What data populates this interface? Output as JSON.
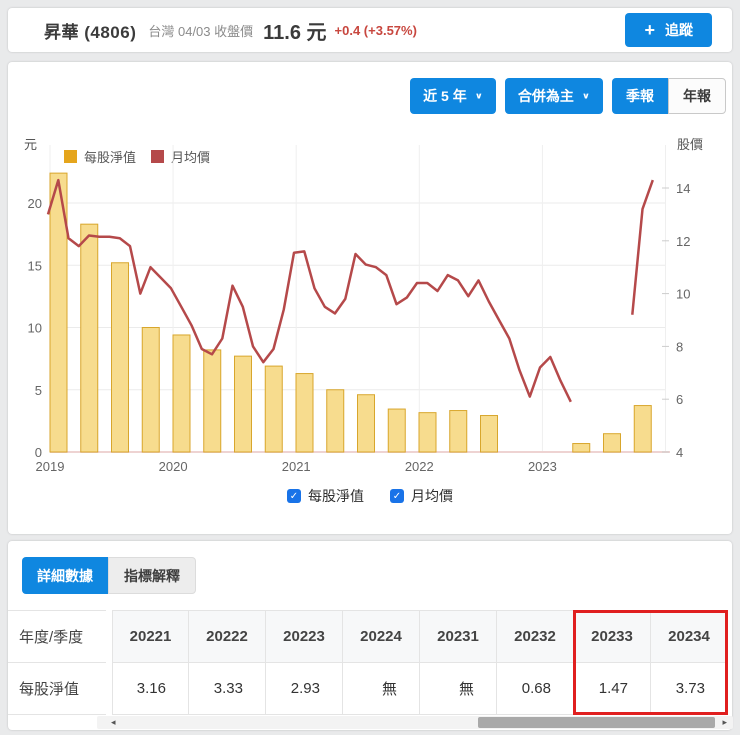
{
  "header": {
    "stock_name": "昇華 (4806)",
    "price_context": "台灣 04/03 收盤價",
    "price": "11.6 元",
    "change": "+0.4 (+3.57%)",
    "follow_label": "追蹤"
  },
  "controls": {
    "range_dropdown": "近 5 年",
    "basis_dropdown": "合併為主",
    "period_quarter": "季報",
    "period_year": "年報",
    "active_period": "季報"
  },
  "colors": {
    "accent_blue": "#0f87e0",
    "bar_fill": "#f7dc8e",
    "bar_border": "#d8a62c",
    "legend_gold": "#e5a51c",
    "line_red": "#b5494a",
    "change_red": "#c8473f",
    "highlight_red": "#e01f1f"
  },
  "chart_data": {
    "type": "bar+line",
    "left_axis": {
      "label": "元",
      "ticks": [
        0,
        5,
        10,
        15,
        20
      ],
      "range": [
        0,
        24.7
      ]
    },
    "right_axis": {
      "label": "股價",
      "ticks": [
        4,
        6,
        8,
        10,
        12,
        14
      ],
      "range": [
        4,
        15.6
      ]
    },
    "x_years": [
      "2019",
      "2020",
      "2021",
      "2022",
      "2023"
    ],
    "legend": [
      "每股淨值",
      "月均價"
    ],
    "series": [
      {
        "name": "每股淨值",
        "type": "bar",
        "axis": "left",
        "quarters": [
          "2019Q1",
          "2019Q2",
          "2019Q3",
          "2019Q4",
          "2020Q1",
          "2020Q2",
          "2020Q3",
          "2020Q4",
          "2021Q1",
          "2021Q2",
          "2021Q3",
          "2021Q4",
          "2022Q1",
          "2022Q2",
          "2022Q3",
          "2022Q4",
          "2023Q1",
          "2023Q2",
          "2023Q3",
          "2023Q4"
        ],
        "values": [
          22.4,
          18.3,
          15.2,
          10.0,
          9.4,
          8.2,
          7.7,
          6.9,
          6.3,
          5.0,
          4.6,
          3.45,
          3.16,
          3.33,
          2.93,
          null,
          null,
          0.68,
          1.47,
          3.73
        ]
      },
      {
        "name": "月均價",
        "type": "line",
        "axis": "right",
        "months_start": "2019-01",
        "values": [
          13.0,
          14.3,
          12.1,
          11.8,
          12.2,
          12.15,
          12.15,
          12.1,
          11.8,
          10.0,
          11.0,
          10.6,
          10.2,
          9.5,
          8.8,
          7.9,
          7.7,
          8.3,
          10.3,
          9.5,
          8.0,
          7.4,
          7.9,
          9.4,
          11.55,
          11.6,
          10.2,
          9.5,
          9.25,
          9.8,
          11.5,
          11.1,
          11.0,
          10.7,
          9.6,
          9.85,
          10.4,
          10.4,
          10.1,
          10.7,
          10.5,
          9.9,
          10.5,
          9.7,
          9.0,
          8.3,
          7.1,
          6.1,
          7.2,
          7.6,
          6.7,
          5.9,
          null,
          null,
          null,
          null,
          null,
          9.2,
          13.2,
          14.3
        ]
      }
    ]
  },
  "chart_checkboxes": [
    {
      "label": "每股淨值",
      "checked": true
    },
    {
      "label": "月均價",
      "checked": true
    }
  ],
  "tabs": [
    {
      "label": "詳細數據",
      "active": true
    },
    {
      "label": "指標解釋",
      "active": false
    }
  ],
  "table": {
    "corner_header": "年度/季度",
    "row_label": "每股淨值",
    "columns": [
      "20221",
      "20222",
      "20223",
      "20224",
      "20231",
      "20232",
      "20233",
      "20234"
    ],
    "values": [
      "3.16",
      "3.33",
      "2.93",
      "無",
      "無",
      "0.68",
      "1.47",
      "3.73"
    ],
    "highlighted_columns": [
      "20233",
      "20234"
    ]
  }
}
